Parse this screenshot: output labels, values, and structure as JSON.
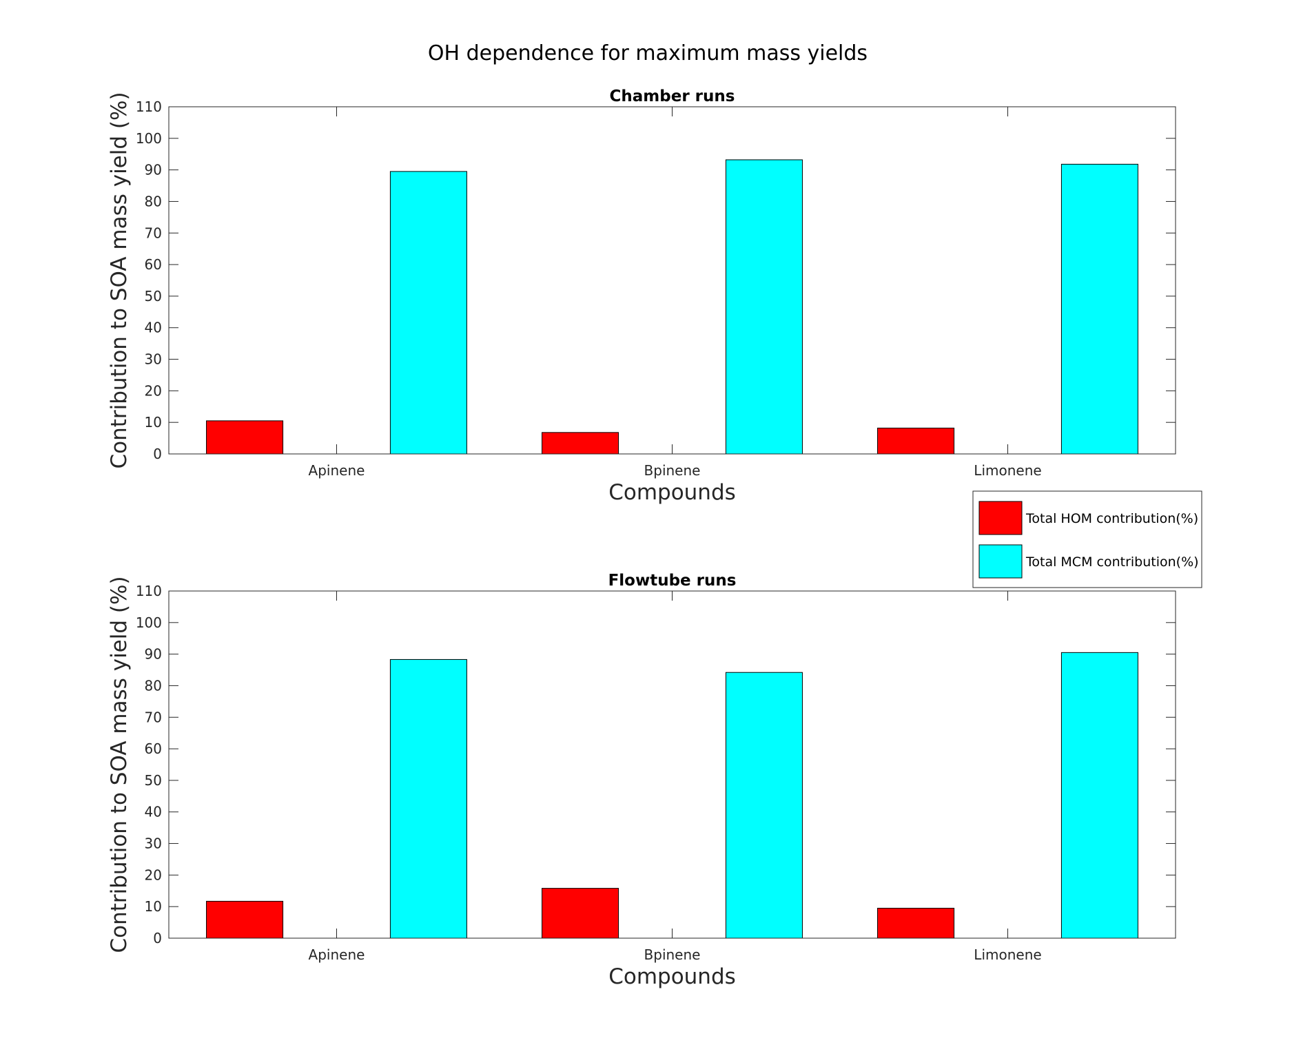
{
  "figure_title": "OH dependence for maximum mass yields",
  "colors": {
    "hom": "#ff0000",
    "mcm": "#00ffff",
    "grid": "#e6e6e6",
    "axis": "#262626"
  },
  "legend": {
    "placement": "between-panels-right",
    "entries": [
      "Total HOM contribution(%)",
      "Total MCM contribution(%)"
    ]
  },
  "chart_data": [
    {
      "type": "bar",
      "title": "Chamber runs",
      "xlabel": "Compounds",
      "ylabel": "Contribution to SOA mass yield (%)",
      "ylim": [
        0,
        110
      ],
      "yticks": [
        0,
        10,
        20,
        30,
        40,
        50,
        60,
        70,
        80,
        90,
        100,
        110
      ],
      "grid": true,
      "categories": [
        "Apinene",
        "Bpinene",
        "Limonene"
      ],
      "series": [
        {
          "name": "Total HOM contribution(%)",
          "values": [
            10.5,
            6.8,
            8.2
          ]
        },
        {
          "name": "Total MCM contribution(%)",
          "values": [
            89.5,
            93.2,
            91.8
          ]
        }
      ]
    },
    {
      "type": "bar",
      "title": "Flowtube runs",
      "xlabel": "Compounds",
      "ylabel": "Contribution to SOA mass yield (%)",
      "ylim": [
        0,
        110
      ],
      "yticks": [
        0,
        10,
        20,
        30,
        40,
        50,
        60,
        70,
        80,
        90,
        100,
        110
      ],
      "grid": true,
      "categories": [
        "Apinene",
        "Bpinene",
        "Limonene"
      ],
      "series": [
        {
          "name": "Total HOM contribution(%)",
          "values": [
            11.7,
            15.8,
            9.5
          ]
        },
        {
          "name": "Total MCM contribution(%)",
          "values": [
            88.3,
            84.2,
            90.5
          ]
        }
      ]
    }
  ]
}
